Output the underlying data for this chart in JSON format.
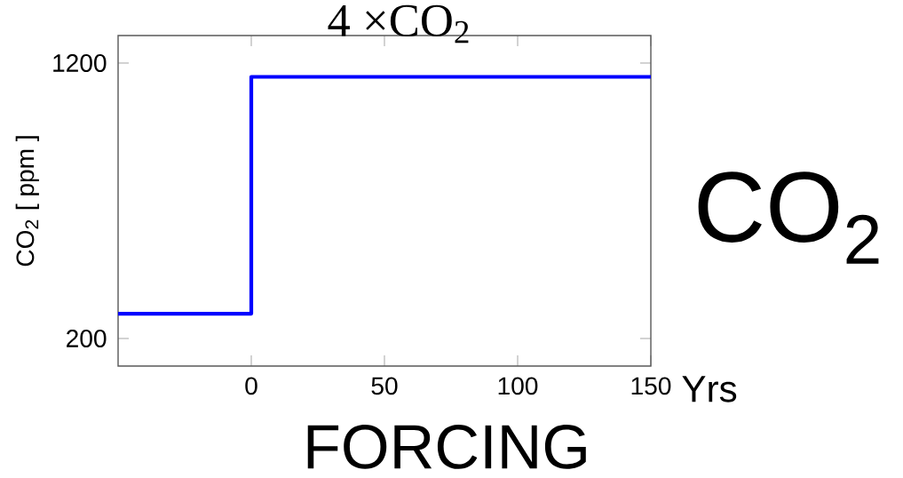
{
  "chart_data": {
    "type": "step",
    "title": "4 ×CO$_{2}$",
    "xlabel": "Yrs",
    "ylabel": "CO$_{2}$  [ ppm ]",
    "annotations": [
      "CO$_{2}$",
      "FORCING"
    ],
    "x": [
      -50,
      0,
      150
    ],
    "series": [
      {
        "color": "#0000ff",
        "values": [
          290,
          1150,
          1150
        ]
      }
    ],
    "xlim": [
      -50,
      150
    ],
    "ylim": [
      100,
      1300
    ],
    "xticks": [
      0,
      50,
      100,
      150
    ],
    "yticks": [
      200,
      1200
    ]
  }
}
